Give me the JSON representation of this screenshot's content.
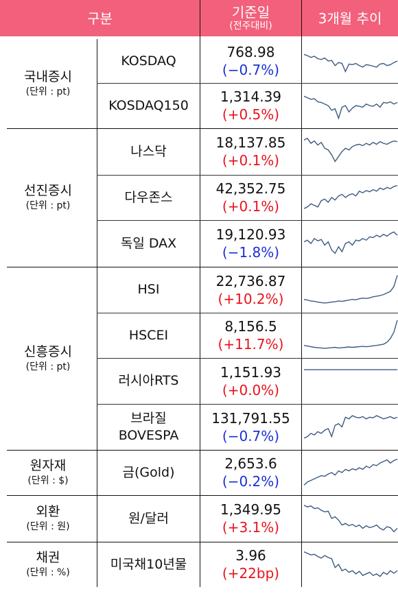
{
  "header": {
    "category": "구분",
    "value_main": "기준일",
    "value_sub": "(전주대비)",
    "trend": "3개월 추이"
  },
  "line_color": "#3b5a80",
  "groups": [
    {
      "name": "국내증시",
      "unit": "(단위 : pt)"
    },
    {
      "name": "선진증시",
      "unit": "(단위 : pt)"
    },
    {
      "name": "신흥증시",
      "unit": "(단위 : pt)"
    },
    {
      "name": "원자재",
      "unit": "(단위 : $)"
    },
    {
      "name": "외환",
      "unit": "(단위 : 원)"
    },
    {
      "name": "채권",
      "unit": "(단위 : %)"
    }
  ],
  "rows": [
    {
      "item": "KOSDAQ",
      "value": "768.98",
      "change": "(−0.7%)",
      "direction": "down",
      "trend": [
        0.72,
        0.68,
        0.62,
        0.66,
        0.58,
        0.55,
        0.6,
        0.5,
        0.52,
        0.35,
        0.45,
        0.42,
        0.15,
        0.4,
        0.38,
        0.42,
        0.35,
        0.3,
        0.38,
        0.36,
        0.33,
        0.3,
        0.4,
        0.42,
        0.35,
        0.38,
        0.45,
        0.5
      ]
    },
    {
      "item": "KOSDAQ150",
      "value": "1,314.39",
      "change": "(+0.5%)",
      "direction": "up",
      "trend": [
        0.8,
        0.75,
        0.7,
        0.72,
        0.62,
        0.6,
        0.55,
        0.5,
        0.35,
        0.4,
        0.1,
        0.45,
        0.5,
        0.3,
        0.42,
        0.5,
        0.48,
        0.45,
        0.55,
        0.5,
        0.48,
        0.55,
        0.45,
        0.6,
        0.58,
        0.62,
        0.55,
        0.6
      ]
    },
    {
      "item": "나스닥",
      "value": "18,137.85",
      "change": "(+0.1%)",
      "direction": "up",
      "trend": [
        0.85,
        0.9,
        0.75,
        0.82,
        0.7,
        0.78,
        0.6,
        0.55,
        0.4,
        0.2,
        0.35,
        0.5,
        0.6,
        0.55,
        0.65,
        0.7,
        0.72,
        0.68,
        0.75,
        0.7,
        0.78,
        0.72,
        0.8,
        0.75,
        0.72,
        0.78,
        0.82,
        0.8
      ]
    },
    {
      "item": "다우존스",
      "value": "42,352.75",
      "change": "(+0.1%)",
      "direction": "up",
      "trend": [
        0.15,
        0.2,
        0.3,
        0.25,
        0.2,
        0.4,
        0.45,
        0.35,
        0.5,
        0.42,
        0.55,
        0.6,
        0.5,
        0.58,
        0.62,
        0.55,
        0.7,
        0.65,
        0.72,
        0.68,
        0.75,
        0.7,
        0.8,
        0.75,
        0.82,
        0.78,
        0.85,
        0.88
      ]
    },
    {
      "item": "독일 DAX",
      "value": "19,120.93",
      "change": "(−1.8%)",
      "direction": "down",
      "trend": [
        0.55,
        0.6,
        0.5,
        0.65,
        0.58,
        0.62,
        0.45,
        0.55,
        0.3,
        0.2,
        0.4,
        0.25,
        0.5,
        0.55,
        0.45,
        0.6,
        0.58,
        0.65,
        0.6,
        0.7,
        0.68,
        0.75,
        0.7,
        0.78,
        0.72,
        0.8,
        0.85,
        0.75
      ]
    },
    {
      "item": "HSI",
      "value": "22,736.87",
      "change": "(+10.2%)",
      "direction": "up",
      "trend": [
        0.2,
        0.18,
        0.15,
        0.14,
        0.12,
        0.1,
        0.09,
        0.1,
        0.12,
        0.13,
        0.15,
        0.14,
        0.16,
        0.18,
        0.2,
        0.19,
        0.22,
        0.24,
        0.23,
        0.25,
        0.28,
        0.3,
        0.32,
        0.35,
        0.4,
        0.45,
        0.6,
        0.95
      ]
    },
    {
      "item": "HSCEI",
      "value": "8,156.5",
      "change": "(+11.7%)",
      "direction": "up",
      "trend": [
        0.18,
        0.16,
        0.14,
        0.12,
        0.11,
        0.1,
        0.09,
        0.1,
        0.11,
        0.12,
        0.1,
        0.11,
        0.12,
        0.13,
        0.12,
        0.13,
        0.14,
        0.15,
        0.14,
        0.15,
        0.17,
        0.18,
        0.2,
        0.22,
        0.28,
        0.4,
        0.6,
        0.98
      ]
    },
    {
      "item": "러시아RTS",
      "value": "1,151.93",
      "change": "(+0.0%)",
      "direction": "up",
      "trend": [
        0.85,
        0.85,
        0.85,
        0.85,
        0.85,
        0.85,
        0.85,
        0.85,
        0.85,
        0.85,
        0.85,
        0.85,
        0.85,
        0.85,
        0.85,
        0.85,
        0.85,
        0.85,
        0.85,
        0.85,
        0.85,
        0.85,
        0.85,
        0.85,
        0.85,
        0.85,
        0.85,
        0.85
      ]
    },
    {
      "item": "브라질\nBOVESPA",
      "value": "131,791.55",
      "change": "(−0.7%)",
      "direction": "down",
      "trend": [
        0.15,
        0.2,
        0.3,
        0.25,
        0.35,
        0.3,
        0.4,
        0.45,
        0.2,
        0.55,
        0.6,
        0.5,
        0.8,
        0.75,
        0.85,
        0.8,
        0.78,
        0.82,
        0.75,
        0.8,
        0.78,
        0.85,
        0.8,
        0.75,
        0.78,
        0.82,
        0.76,
        0.8
      ]
    },
    {
      "item": "금(Gold)",
      "value": "2,653.6",
      "change": "(−0.2%)",
      "direction": "down",
      "trend": [
        0.1,
        0.2,
        0.25,
        0.3,
        0.35,
        0.4,
        0.38,
        0.45,
        0.5,
        0.42,
        0.55,
        0.5,
        0.6,
        0.55,
        0.62,
        0.58,
        0.65,
        0.6,
        0.7,
        0.65,
        0.75,
        0.72,
        0.8,
        0.85,
        0.9,
        0.8,
        0.88,
        0.92
      ]
    },
    {
      "item": "원/달러",
      "value": "1,349.95",
      "change": "(+3.1%)",
      "direction": "up",
      "trend": [
        0.9,
        0.85,
        0.88,
        0.8,
        0.82,
        0.75,
        0.7,
        0.72,
        0.5,
        0.55,
        0.45,
        0.3,
        0.35,
        0.28,
        0.32,
        0.25,
        0.3,
        0.2,
        0.28,
        0.22,
        0.25,
        0.3,
        0.2,
        0.15,
        0.25,
        0.22,
        0.1,
        0.2
      ]
    },
    {
      "item": "미국채10년물",
      "value": "3.96",
      "change": "(+22bp)",
      "direction": "up",
      "trend": [
        0.9,
        0.85,
        0.8,
        0.82,
        0.75,
        0.7,
        0.78,
        0.72,
        0.68,
        0.4,
        0.5,
        0.3,
        0.35,
        0.25,
        0.3,
        0.2,
        0.28,
        0.15,
        0.2,
        0.25,
        0.15,
        0.2,
        0.12,
        0.25,
        0.18,
        0.3,
        0.22,
        0.3
      ]
    }
  ]
}
